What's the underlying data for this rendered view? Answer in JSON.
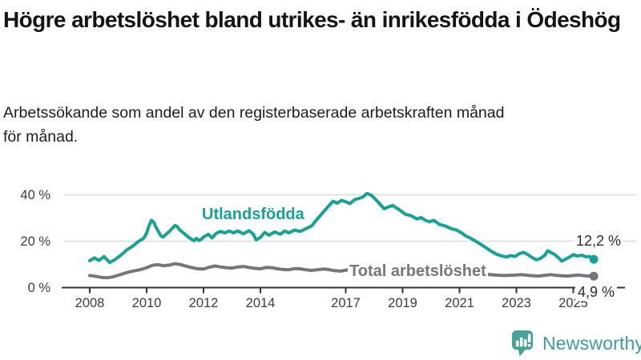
{
  "header": {
    "title": "Högre arbetslöshet bland utrikes- än inrikesfödda i Ödeshög",
    "subtitle": "Arbetssökande som andel av den registerbaserade arbetskraften månad för månad."
  },
  "branding": {
    "logo_text": "Newsworthy",
    "logo_icon": "bar-chart-speech-bubble-icon",
    "logo_color": "#47a29a"
  },
  "chart_data": {
    "type": "line",
    "unit": "%",
    "grid": "horizontal",
    "grid_color": "#dcdcde",
    "axis_color": "#333333",
    "ylim": [
      0,
      44
    ],
    "x_range": [
      2008.0,
      2025.75
    ],
    "y_axis": {
      "ticks": [
        {
          "value": 0,
          "label": "0 %"
        },
        {
          "value": 20,
          "label": "20 %"
        },
        {
          "value": 40,
          "label": "40 %"
        }
      ]
    },
    "x_axis": {
      "ticks": [
        {
          "value": 2008,
          "label": "2008"
        },
        {
          "value": 2010,
          "label": "2010"
        },
        {
          "value": 2012,
          "label": "2012"
        },
        {
          "value": 2014,
          "label": "2014"
        },
        {
          "value": 2017,
          "label": "2017"
        },
        {
          "value": 2019,
          "label": "2019"
        },
        {
          "value": 2021,
          "label": "2021"
        },
        {
          "value": 2023,
          "label": "2023"
        },
        {
          "value": 2025,
          "label": "2025"
        }
      ]
    },
    "series": [
      {
        "key": "utlandsfodda",
        "name": "Utlandsfödda",
        "color": "#18a195",
        "end_label": "12,2 %",
        "end_value": 12.2,
        "points": [
          [
            2008.0,
            11.6
          ],
          [
            2008.17,
            12.8
          ],
          [
            2008.33,
            11.7
          ],
          [
            2008.5,
            13.4
          ],
          [
            2008.7,
            10.8
          ],
          [
            2008.9,
            12.2
          ],
          [
            2009.1,
            14.0
          ],
          [
            2009.3,
            16.2
          ],
          [
            2009.5,
            17.8
          ],
          [
            2009.7,
            19.8
          ],
          [
            2009.9,
            21.3
          ],
          [
            2010.0,
            23.5
          ],
          [
            2010.08,
            26.5
          ],
          [
            2010.17,
            29.0
          ],
          [
            2010.25,
            28.2
          ],
          [
            2010.33,
            26.0
          ],
          [
            2010.5,
            22.3
          ],
          [
            2010.58,
            21.8
          ],
          [
            2010.7,
            23.2
          ],
          [
            2010.83,
            24.6
          ],
          [
            2010.92,
            25.8
          ],
          [
            2011.0,
            26.8
          ],
          [
            2011.08,
            26.2
          ],
          [
            2011.17,
            24.8
          ],
          [
            2011.33,
            23.2
          ],
          [
            2011.5,
            21.4
          ],
          [
            2011.67,
            20.2
          ],
          [
            2011.75,
            21.2
          ],
          [
            2011.83,
            20.3
          ],
          [
            2011.92,
            20.8
          ],
          [
            2012.0,
            21.8
          ],
          [
            2012.17,
            23.0
          ],
          [
            2012.3,
            21.4
          ],
          [
            2012.45,
            23.4
          ],
          [
            2012.6,
            24.2
          ],
          [
            2012.75,
            23.6
          ],
          [
            2012.9,
            24.4
          ],
          [
            2013.05,
            23.6
          ],
          [
            2013.2,
            24.4
          ],
          [
            2013.4,
            23.2
          ],
          [
            2013.6,
            24.6
          ],
          [
            2013.75,
            23.0
          ],
          [
            2013.85,
            20.6
          ],
          [
            2014.0,
            21.6
          ],
          [
            2014.15,
            23.8
          ],
          [
            2014.3,
            22.6
          ],
          [
            2014.5,
            24.0
          ],
          [
            2014.7,
            23.0
          ],
          [
            2014.85,
            24.4
          ],
          [
            2015.0,
            23.6
          ],
          [
            2015.2,
            24.8
          ],
          [
            2015.4,
            24.2
          ],
          [
            2015.6,
            25.4
          ],
          [
            2015.8,
            26.6
          ],
          [
            2016.0,
            29.6
          ],
          [
            2016.2,
            32.4
          ],
          [
            2016.4,
            35.2
          ],
          [
            2016.55,
            37.2
          ],
          [
            2016.7,
            36.4
          ],
          [
            2016.85,
            37.6
          ],
          [
            2017.0,
            37.0
          ],
          [
            2017.15,
            36.2
          ],
          [
            2017.3,
            37.8
          ],
          [
            2017.45,
            38.4
          ],
          [
            2017.6,
            39.0
          ],
          [
            2017.75,
            40.6
          ],
          [
            2017.9,
            39.8
          ],
          [
            2018.05,
            38.0
          ],
          [
            2018.2,
            36.0
          ],
          [
            2018.35,
            34.0
          ],
          [
            2018.5,
            34.8
          ],
          [
            2018.65,
            35.4
          ],
          [
            2018.8,
            34.2
          ],
          [
            2018.95,
            33.0
          ],
          [
            2019.1,
            31.6
          ],
          [
            2019.3,
            31.0
          ],
          [
            2019.5,
            29.6
          ],
          [
            2019.65,
            30.2
          ],
          [
            2019.8,
            29.0
          ],
          [
            2019.95,
            28.4
          ],
          [
            2020.1,
            29.0
          ],
          [
            2020.3,
            27.2
          ],
          [
            2020.5,
            26.6
          ],
          [
            2020.7,
            25.4
          ],
          [
            2020.9,
            24.8
          ],
          [
            2021.05,
            23.8
          ],
          [
            2021.2,
            22.4
          ],
          [
            2021.4,
            21.2
          ],
          [
            2021.6,
            19.8
          ],
          [
            2021.8,
            18.2
          ],
          [
            2021.95,
            17.0
          ],
          [
            2022.1,
            15.8
          ],
          [
            2022.3,
            14.4
          ],
          [
            2022.5,
            13.6
          ],
          [
            2022.65,
            13.2
          ],
          [
            2022.8,
            13.8
          ],
          [
            2022.95,
            13.4
          ],
          [
            2023.1,
            14.6
          ],
          [
            2023.25,
            15.2
          ],
          [
            2023.4,
            14.2
          ],
          [
            2023.55,
            13.0
          ],
          [
            2023.7,
            12.0
          ],
          [
            2023.85,
            12.6
          ],
          [
            2024.0,
            14.0
          ],
          [
            2024.1,
            15.9
          ],
          [
            2024.2,
            15.2
          ],
          [
            2024.35,
            14.2
          ],
          [
            2024.5,
            12.6
          ],
          [
            2024.6,
            11.4
          ],
          [
            2024.75,
            12.4
          ],
          [
            2024.9,
            13.4
          ],
          [
            2025.0,
            14.2
          ],
          [
            2025.15,
            13.6
          ],
          [
            2025.3,
            14.0
          ],
          [
            2025.45,
            13.2
          ],
          [
            2025.55,
            13.5
          ],
          [
            2025.72,
            12.2
          ]
        ]
      },
      {
        "key": "total",
        "name": "Total arbetslöshet",
        "color": "#75767b",
        "end_label": "4,9 %",
        "end_value": 4.9,
        "points": [
          [
            2008.0,
            5.2
          ],
          [
            2008.2,
            4.9
          ],
          [
            2008.4,
            4.4
          ],
          [
            2008.6,
            4.2
          ],
          [
            2008.8,
            4.6
          ],
          [
            2009.0,
            5.3
          ],
          [
            2009.2,
            6.1
          ],
          [
            2009.4,
            6.8
          ],
          [
            2009.6,
            7.3
          ],
          [
            2009.8,
            7.8
          ],
          [
            2010.0,
            8.6
          ],
          [
            2010.2,
            9.6
          ],
          [
            2010.4,
            9.9
          ],
          [
            2010.6,
            9.4
          ],
          [
            2010.8,
            9.7
          ],
          [
            2011.0,
            10.3
          ],
          [
            2011.2,
            9.9
          ],
          [
            2011.4,
            9.2
          ],
          [
            2011.6,
            8.6
          ],
          [
            2011.8,
            8.1
          ],
          [
            2012.0,
            8.0
          ],
          [
            2012.2,
            8.8
          ],
          [
            2012.4,
            9.3
          ],
          [
            2012.6,
            8.9
          ],
          [
            2012.8,
            8.6
          ],
          [
            2013.0,
            8.4
          ],
          [
            2013.2,
            8.9
          ],
          [
            2013.4,
            9.1
          ],
          [
            2013.6,
            8.7
          ],
          [
            2013.8,
            8.3
          ],
          [
            2014.0,
            8.1
          ],
          [
            2014.2,
            8.7
          ],
          [
            2014.4,
            8.6
          ],
          [
            2014.6,
            8.1
          ],
          [
            2014.8,
            7.8
          ],
          [
            2015.0,
            7.7
          ],
          [
            2015.2,
            8.2
          ],
          [
            2015.4,
            8.1
          ],
          [
            2015.6,
            7.7
          ],
          [
            2015.8,
            7.4
          ],
          [
            2016.0,
            7.7
          ],
          [
            2016.2,
            8.0
          ],
          [
            2016.4,
            7.8
          ],
          [
            2016.6,
            7.3
          ],
          [
            2016.8,
            7.1
          ],
          [
            2017.0,
            7.5
          ],
          [
            2017.2,
            8.1
          ],
          [
            2017.4,
            8.6
          ],
          [
            2017.6,
            8.4
          ],
          [
            2017.8,
            8.0
          ],
          [
            2018.0,
            7.7
          ],
          [
            2018.2,
            7.4
          ],
          [
            2018.4,
            7.1
          ],
          [
            2018.6,
            6.9
          ],
          [
            2018.8,
            6.7
          ],
          [
            2019.0,
            7.0
          ],
          [
            2019.2,
            7.2
          ],
          [
            2019.4,
            7.1
          ],
          [
            2019.6,
            6.9
          ],
          [
            2019.8,
            6.7
          ],
          [
            2020.0,
            7.0
          ],
          [
            2020.2,
            7.9
          ],
          [
            2020.4,
            8.4
          ],
          [
            2020.6,
            8.2
          ],
          [
            2020.8,
            7.9
          ],
          [
            2021.0,
            7.6
          ],
          [
            2021.2,
            7.1
          ],
          [
            2021.4,
            6.7
          ],
          [
            2021.6,
            6.2
          ],
          [
            2021.8,
            5.9
          ],
          [
            2022.0,
            5.7
          ],
          [
            2022.2,
            5.5
          ],
          [
            2022.4,
            5.3
          ],
          [
            2022.6,
            5.2
          ],
          [
            2022.8,
            5.3
          ],
          [
            2023.0,
            5.4
          ],
          [
            2023.2,
            5.6
          ],
          [
            2023.4,
            5.3
          ],
          [
            2023.6,
            5.1
          ],
          [
            2023.8,
            5.0
          ],
          [
            2024.0,
            5.3
          ],
          [
            2024.2,
            5.6
          ],
          [
            2024.4,
            5.3
          ],
          [
            2024.6,
            5.1
          ],
          [
            2024.8,
            5.0
          ],
          [
            2025.0,
            5.2
          ],
          [
            2025.2,
            5.4
          ],
          [
            2025.4,
            5.1
          ],
          [
            2025.55,
            5.0
          ],
          [
            2025.72,
            4.9
          ]
        ]
      }
    ]
  }
}
